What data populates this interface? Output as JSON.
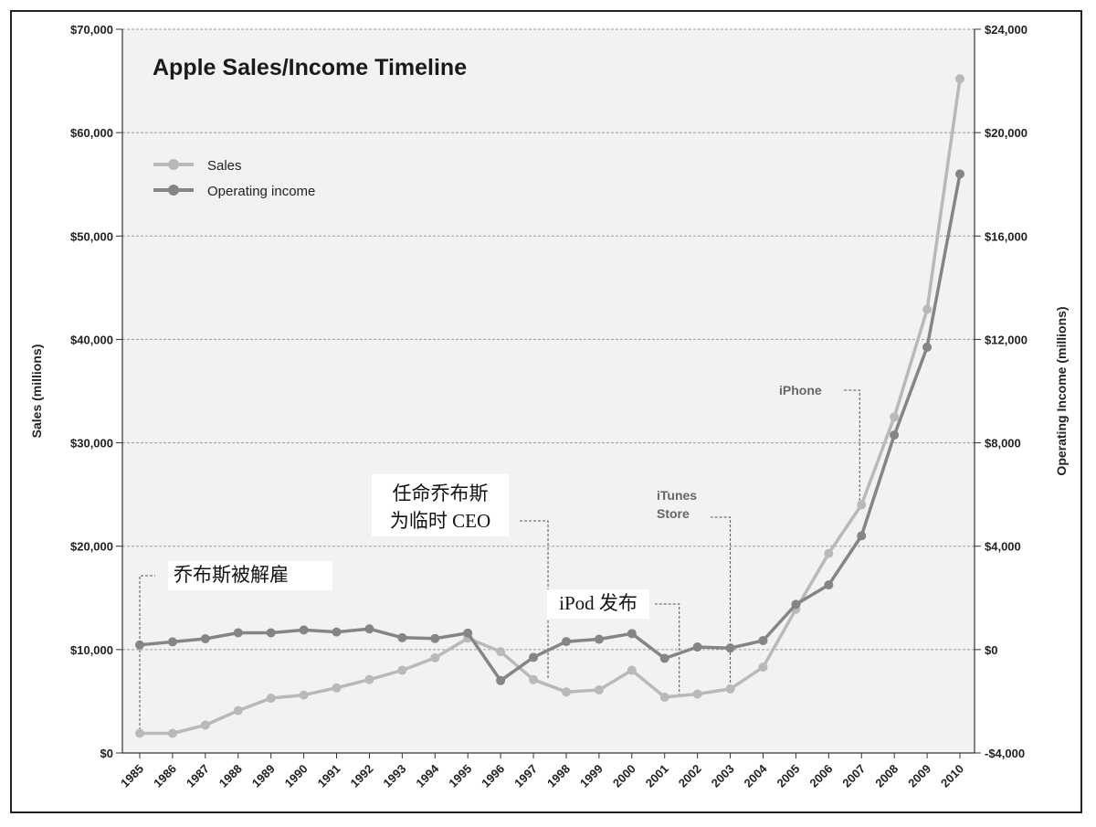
{
  "chart_data": {
    "type": "line",
    "title": "Apple Sales/Income Timeline",
    "categories": [
      "1985",
      "1986",
      "1987",
      "1988",
      "1989",
      "1990",
      "1991",
      "1992",
      "1993",
      "1994",
      "1995",
      "1996",
      "1997",
      "1998",
      "1999",
      "2000",
      "2001",
      "2002",
      "2003",
      "2004",
      "2005",
      "2006",
      "2007",
      "2008",
      "2009",
      "2010"
    ],
    "series": [
      {
        "name": "Sales",
        "axis": "left",
        "color": "#b9b9b9",
        "values": [
          1900,
          1900,
          2700,
          4100,
          5300,
          5600,
          6300,
          7100,
          8000,
          9200,
          11100,
          9800,
          7100,
          5900,
          6100,
          8000,
          5400,
          5700,
          6200,
          8300,
          13900,
          19300,
          24000,
          32500,
          42900,
          65200
        ]
      },
      {
        "name": "Operating income",
        "axis": "right",
        "color": "#858585",
        "values": [
          180,
          300,
          420,
          650,
          650,
          760,
          680,
          800,
          460,
          430,
          640,
          -1200,
          -300,
          310,
          400,
          620,
          -340,
          100,
          60,
          350,
          1750,
          2500,
          4400,
          8300,
          11700,
          18400
        ]
      }
    ],
    "left_axis": {
      "label": "Sales (millions)",
      "ylim": [
        0,
        70000
      ],
      "ticks": [
        {
          "v": 0,
          "t": "$0"
        },
        {
          "v": 10000,
          "t": "$10,000"
        },
        {
          "v": 20000,
          "t": "$20,000"
        },
        {
          "v": 30000,
          "t": "$30,000"
        },
        {
          "v": 40000,
          "t": "$40,000"
        },
        {
          "v": 50000,
          "t": "$50,000"
        },
        {
          "v": 60000,
          "t": "$60,000"
        },
        {
          "v": 70000,
          "t": "$70,000"
        }
      ]
    },
    "right_axis": {
      "label": "Operating Income (millions)",
      "ylim": [
        -4000,
        24000
      ],
      "ticks": [
        {
          "v": -4000,
          "t": "-$4,000"
        },
        {
          "v": 0,
          "t": "$0"
        },
        {
          "v": 4000,
          "t": "$4,000"
        },
        {
          "v": 8000,
          "t": "$8,000"
        },
        {
          "v": 12000,
          "t": "$12,000"
        },
        {
          "v": 16000,
          "t": "$16,000"
        },
        {
          "v": 20000,
          "t": "$20,000"
        },
        {
          "v": 24000,
          "t": "$24,000"
        }
      ]
    },
    "grid": true,
    "legend_position": "top-left",
    "annotations": [
      {
        "id": "jobs-fired",
        "year": "1985",
        "lines": [
          "乔布斯被解雇"
        ],
        "lang": "zh"
      },
      {
        "id": "jobs-interim-ceo",
        "year": "1997",
        "lines": [
          "任命乔布斯",
          "为临时 CEO"
        ],
        "lang": "zh"
      },
      {
        "id": "ipod-launch",
        "year": "2001",
        "lines": [
          "iPod 发布"
        ],
        "lang": "zh"
      },
      {
        "id": "itunes-store",
        "year": "2003",
        "lines": [
          "iTunes",
          "Store"
        ],
        "lang": "en"
      },
      {
        "id": "iphone",
        "year": "2007",
        "lines": [
          "iPhone"
        ],
        "lang": "en"
      }
    ]
  }
}
